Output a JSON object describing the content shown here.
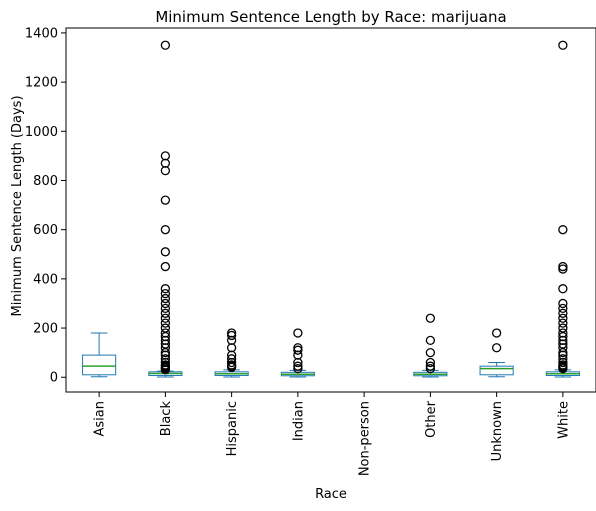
{
  "chart_data": {
    "type": "box",
    "title": "Minimum Sentence Length by Race: marijuana",
    "xlabel": "Race",
    "ylabel": "Minimum Sentence Length (Days)",
    "ylim": [
      -60,
      1420
    ],
    "yticks": [
      0,
      200,
      400,
      600,
      800,
      1000,
      1200,
      1400
    ],
    "grid": false,
    "categories": [
      "Asian",
      "Black",
      "Hispanic",
      "Indian",
      "Non-person",
      "Other",
      "Unknown",
      "White"
    ],
    "boxes": [
      {
        "category": "Asian",
        "whisker_low": 2,
        "q1": 10,
        "median": 45,
        "q3": 90,
        "whisker_high": 180,
        "outliers": []
      },
      {
        "category": "Black",
        "whisker_low": 1,
        "q1": 7,
        "median": 15,
        "q3": 22,
        "whisker_high": 25,
        "outliers": [
          30,
          35,
          40,
          45,
          50,
          60,
          75,
          90,
          100,
          120,
          135,
          150,
          165,
          180,
          200,
          220,
          240,
          260,
          280,
          300,
          320,
          340,
          360,
          450,
          510,
          600,
          720,
          840,
          870,
          900,
          1350
        ]
      },
      {
        "category": "Hispanic",
        "whisker_low": 1,
        "q1": 7,
        "median": 14,
        "q3": 22,
        "whisker_high": 30,
        "outliers": [
          40,
          45,
          50,
          60,
          75,
          90,
          120,
          150,
          170,
          180
        ]
      },
      {
        "category": "Indian",
        "whisker_low": 1,
        "q1": 6,
        "median": 12,
        "q3": 20,
        "whisker_high": 28,
        "outliers": [
          35,
          45,
          60,
          90,
          110,
          120,
          180
        ]
      },
      {
        "category": "Non-person",
        "empty": true
      },
      {
        "category": "Other",
        "whisker_low": 1,
        "q1": 6,
        "median": 12,
        "q3": 20,
        "whisker_high": 28,
        "outliers": [
          35,
          45,
          60,
          100,
          150,
          240
        ]
      },
      {
        "category": "Unknown",
        "whisker_low": 2,
        "q1": 10,
        "median": 35,
        "q3": 45,
        "whisker_high": 60,
        "outliers": [
          120,
          180
        ]
      },
      {
        "category": "White",
        "whisker_low": 1,
        "q1": 7,
        "median": 14,
        "q3": 22,
        "whisker_high": 30,
        "outliers": [
          35,
          40,
          45,
          50,
          60,
          75,
          90,
          100,
          120,
          135,
          150,
          165,
          180,
          200,
          220,
          240,
          260,
          280,
          300,
          360,
          440,
          450,
          600,
          1350
        ]
      }
    ]
  },
  "colors": {
    "box": "#1f77b4",
    "median": "#2ca02c",
    "outlier": "#000000",
    "axis": "#000000"
  }
}
